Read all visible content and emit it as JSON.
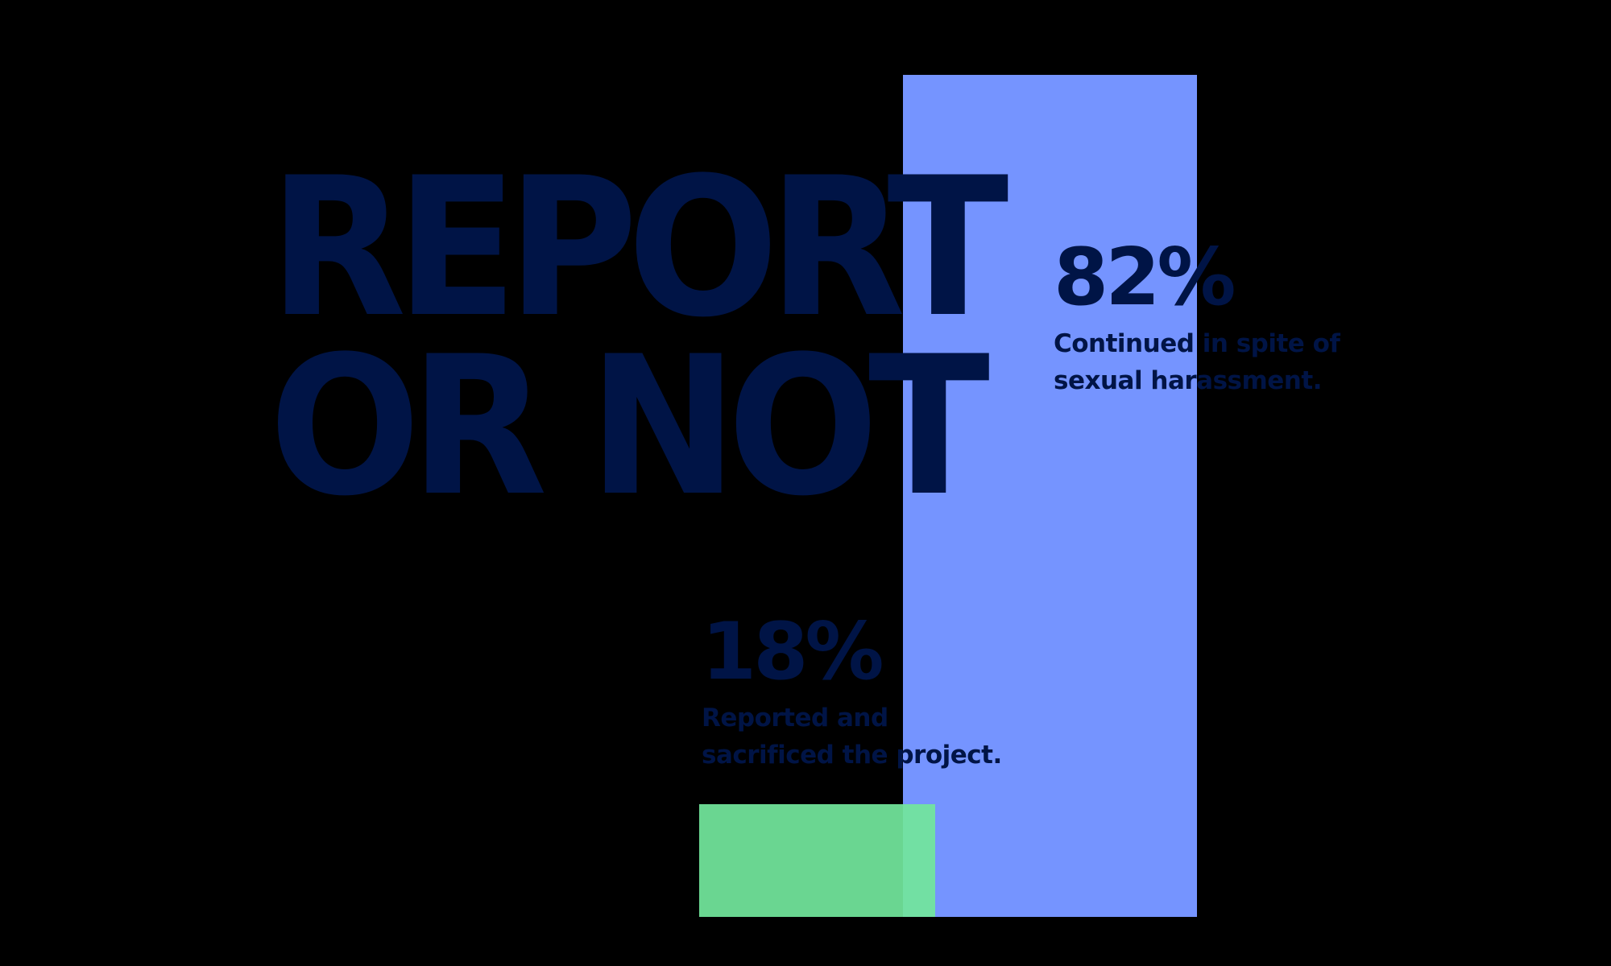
{
  "title": {
    "line1": "REPORT",
    "line2": "OR NOT"
  },
  "colors": {
    "background": "#000000",
    "text": "#001446",
    "blue_bar": "#7594FF",
    "green_bar": "#72E69C"
  },
  "stats": [
    {
      "value": "82%",
      "desc_line1": "Continued in spite of",
      "desc_line2": "sexual harassment."
    },
    {
      "value": "18%",
      "desc_line1": "Reported and",
      "desc_line2": "sacrificed the project."
    }
  ],
  "chart_data": {
    "type": "bar",
    "title": "REPORT OR NOT",
    "categories": [
      "Reported and sacrificed the project.",
      "Continued in spite of sexual harassment."
    ],
    "values": [
      18,
      82
    ],
    "unit": "%",
    "series_colors": [
      "#72E69C",
      "#7594FF"
    ],
    "xlabel": "",
    "ylabel": "",
    "ylim": [
      0,
      82
    ],
    "grid": false,
    "legend": "none",
    "annotations": [
      "18%",
      "82%"
    ]
  }
}
